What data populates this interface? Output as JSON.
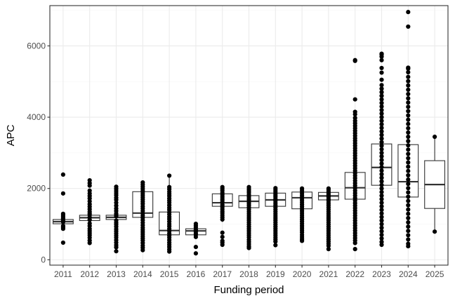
{
  "chart_data": {
    "type": "box",
    "title": "",
    "xlabel": "Funding period",
    "ylabel": "APC",
    "ylim": [
      -150,
      7130
    ],
    "y_ticks": [
      0,
      2000,
      4000,
      6000
    ],
    "grid": true,
    "legend": "none",
    "categories": [
      "2011",
      "2012",
      "2013",
      "2014",
      "2015",
      "2016",
      "2017",
      "2018",
      "2019",
      "2020",
      "2021",
      "2022",
      "2023",
      "2024",
      "2025"
    ],
    "boxes": [
      {
        "category": "2011",
        "q1": 1010,
        "median": 1070,
        "q3": 1130,
        "whisker_low": 1010,
        "whisker_high": 1180,
        "outliers": [
          2390,
          1860,
          1290,
          1250,
          1200,
          1150,
          1100,
          1060,
          950,
          910,
          870,
          480
        ]
      },
      {
        "category": "2012",
        "q1": 1100,
        "median": 1180,
        "q3": 1250,
        "whisker_low": 960,
        "whisker_high": 1340,
        "outliers": [
          2230,
          2150,
          2080,
          1940,
          1860,
          1790,
          1720,
          1640,
          1560,
          1490,
          1420,
          1350,
          1300,
          1260,
          1190,
          1120,
          1020,
          950,
          870,
          810,
          750,
          690,
          620,
          540,
          470
        ]
      },
      {
        "category": "2013",
        "q1": 1130,
        "median": 1190,
        "q3": 1250,
        "whisker_low": 1050,
        "whisker_high": 1330,
        "outliers": [
          2050,
          1990,
          1930,
          1870,
          1810,
          1740,
          1680,
          1600,
          1520,
          1440,
          1370,
          1300,
          1260,
          1220,
          1100,
          1040,
          990,
          930,
          860,
          800,
          740,
          680,
          620,
          550,
          480,
          410,
          350,
          240
        ]
      },
      {
        "category": "2014",
        "q1": 1190,
        "median": 1310,
        "q3": 1910,
        "whisker_low": 790,
        "whisker_high": 2170,
        "outliers": [
          2170,
          2110,
          2050,
          1990,
          1930,
          1870,
          1810,
          1750,
          1690,
          1630,
          1570,
          1500,
          1440,
          1370,
          1300,
          1240,
          1180,
          1110,
          1040,
          970,
          900,
          840,
          780,
          720,
          660,
          600,
          540,
          470,
          400,
          340,
          270
        ]
      },
      {
        "category": "2015",
        "q1": 700,
        "median": 820,
        "q3": 1340,
        "whisker_low": 530,
        "whisker_high": 2360,
        "outliers": [
          2360,
          2040,
          1980,
          1910,
          1850,
          1790,
          1720,
          1660,
          1600,
          1530,
          1460,
          1400,
          1330,
          1270,
          1200,
          1140,
          1070,
          1000,
          940,
          870,
          810,
          740,
          680,
          620,
          550,
          480,
          420,
          360,
          290,
          230
        ]
      },
      {
        "category": "2016",
        "q1": 700,
        "median": 810,
        "q3": 870,
        "whisker_low": 600,
        "whisker_high": 1010,
        "outliers": [
          1010,
          960,
          910,
          850,
          820,
          790,
          740,
          700,
          640,
          360,
          180
        ]
      },
      {
        "category": "2017",
        "q1": 1500,
        "median": 1600,
        "q3": 1850,
        "whisker_low": 1060,
        "whisker_high": 2040,
        "outliers": [
          2040,
          1990,
          1940,
          1880,
          1820,
          1760,
          1700,
          1650,
          1600,
          1540,
          1480,
          1420,
          1360,
          1310,
          1250,
          1190,
          1130,
          760,
          640,
          530,
          480,
          420
        ]
      },
      {
        "category": "2018",
        "q1": 1460,
        "median": 1640,
        "q3": 1800,
        "whisker_low": 960,
        "whisker_high": 2010,
        "outliers": [
          2040,
          1980,
          1930,
          1880,
          1820,
          1760,
          1700,
          1650,
          1590,
          1530,
          1470,
          1410,
          1350,
          1290,
          1230,
          1170,
          1110,
          1050,
          990,
          930,
          870,
          810,
          750,
          690,
          630,
          560,
          500,
          440,
          380,
          330
        ]
      },
      {
        "category": "2019",
        "q1": 1500,
        "median": 1680,
        "q3": 1870,
        "whisker_low": 960,
        "whisker_high": 2000,
        "outliers": [
          2010,
          1960,
          1910,
          1860,
          1810,
          1760,
          1700,
          1650,
          1590,
          1530,
          1470,
          1410,
          1350,
          1290,
          1230,
          1170,
          1110,
          1050,
          990,
          930,
          870,
          810,
          750,
          690,
          630,
          570,
          510,
          410
        ]
      },
      {
        "category": "2020",
        "q1": 1430,
        "median": 1740,
        "q3": 1900,
        "whisker_low": 900,
        "whisker_high": 2000,
        "outliers": [
          2000,
          1950,
          1900,
          1850,
          1790,
          1730,
          1670,
          1610,
          1550,
          1490,
          1430,
          1370,
          1310,
          1250,
          1190,
          1130,
          1070,
          1010,
          950,
          890,
          830,
          770,
          700,
          640,
          580,
          530
        ]
      },
      {
        "category": "2021",
        "q1": 1680,
        "median": 1790,
        "q3": 1890,
        "whisker_low": 1530,
        "whisker_high": 1960,
        "outliers": [
          2000,
          1960,
          1910,
          1860,
          1810,
          1760,
          1700,
          1650,
          1590,
          1530,
          1470,
          1410,
          1350,
          1290,
          1230,
          1170,
          1110,
          1050,
          990,
          930,
          870,
          810,
          750,
          690,
          630,
          570,
          510,
          450,
          390,
          300
        ]
      },
      {
        "category": "2022",
        "q1": 1700,
        "median": 2020,
        "q3": 2450,
        "whisker_low": 1020,
        "whisker_high": 3300,
        "outliers": [
          5600,
          5580,
          4500,
          4150,
          4080,
          3980,
          3900,
          3830,
          3760,
          3690,
          3620,
          3550,
          3480,
          3410,
          3340,
          3270,
          3200,
          3130,
          3060,
          2990,
          2920,
          2850,
          2780,
          2710,
          2640,
          2570,
          2500,
          2430,
          2360,
          2290,
          2220,
          2150,
          2080,
          2010,
          1940,
          1870,
          1800,
          1730,
          1660,
          1590,
          1520,
          1450,
          1380,
          1310,
          1240,
          1170,
          1100,
          1030,
          960,
          890,
          820,
          750,
          680,
          610,
          540,
          470,
          300
        ]
      },
      {
        "category": "2023",
        "q1": 2090,
        "median": 2590,
        "q3": 3250,
        "whisker_low": 1100,
        "whisker_high": 4830,
        "outliers": [
          5780,
          5760,
          5700,
          5600,
          5380,
          5250,
          5050,
          4900,
          4800,
          4700,
          4600,
          4500,
          4400,
          4300,
          4200,
          4100,
          4000,
          3900,
          3800,
          3700,
          3600,
          3500,
          3400,
          3300,
          3200,
          3100,
          3000,
          2900,
          2800,
          2700,
          2600,
          2500,
          2400,
          2300,
          2200,
          2100,
          2000,
          1900,
          1800,
          1700,
          1600,
          1500,
          1400,
          1300,
          1200,
          1100,
          1000,
          900,
          800,
          700,
          600,
          500,
          420
        ]
      },
      {
        "category": "2024",
        "q1": 1760,
        "median": 2190,
        "q3": 3230,
        "whisker_low": 760,
        "whisker_high": 4750,
        "outliers": [
          6950,
          6540,
          5390,
          5360,
          5260,
          5130,
          5010,
          4890,
          4770,
          4650,
          4530,
          4410,
          4290,
          4170,
          4050,
          3930,
          3810,
          3690,
          3570,
          3450,
          3330,
          3210,
          3090,
          2970,
          2850,
          2730,
          2610,
          2490,
          2370,
          2250,
          2130,
          2010,
          1890,
          1770,
          1650,
          1530,
          1410,
          1290,
          1170,
          1050,
          930,
          810,
          690,
          570,
          450,
          380
        ]
      },
      {
        "category": "2025",
        "q1": 1440,
        "median": 2110,
        "q3": 2780,
        "whisker_low": 790,
        "whisker_high": 3450,
        "outliers": [
          3450,
          790
        ]
      }
    ],
    "colors": {
      "panel_border": "#333333",
      "grid_major": "#ebebeb",
      "grid_minor": "#f5f5f5",
      "box_line": "#333333",
      "point": "#000000",
      "tick_text": "#4d4d4d",
      "title_text": "#000000"
    }
  }
}
